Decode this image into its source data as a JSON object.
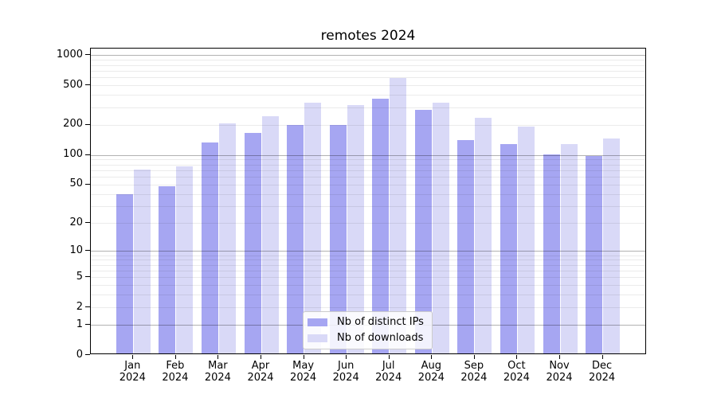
{
  "title": "remotes 2024",
  "chart_data": {
    "type": "bar",
    "title": "remotes 2024",
    "scale": "log1p",
    "categories": [
      "Jan",
      "Feb",
      "Mar",
      "Apr",
      "May",
      "Jun",
      "Jul",
      "Aug",
      "Sep",
      "Oct",
      "Nov",
      "Dec"
    ],
    "year": "2024",
    "series": [
      {
        "name": "Nb of distinct IPs",
        "color": "#a6a6f2",
        "values": [
          38,
          46,
          128,
          159,
          191,
          192,
          357,
          272,
          135,
          124,
          98,
          94
        ]
      },
      {
        "name": "Nb of downloads",
        "color": "#d9d9f7",
        "values": [
          68,
          74,
          199,
          235,
          322,
          306,
          566,
          322,
          228,
          185,
          124,
          141
        ]
      }
    ],
    "xlabel": "",
    "ylabel": "",
    "ylim": [
      0,
      1168
    ],
    "ytick_values": [
      0,
      1,
      2,
      5,
      10,
      20,
      50,
      100,
      200,
      500,
      1000
    ],
    "ytick_labels": [
      "0",
      "1",
      "2",
      "5",
      "10",
      "20",
      "50",
      "100",
      "200",
      "500",
      "1000"
    ],
    "major_grid_values": [
      1,
      10,
      100,
      1000
    ],
    "minor_grid_values": [
      2,
      3,
      4,
      5,
      6,
      7,
      8,
      9,
      20,
      30,
      40,
      50,
      60,
      70,
      80,
      90,
      200,
      300,
      400,
      500,
      600,
      700,
      800,
      900
    ],
    "grid": true,
    "legend_position": "lower center"
  },
  "colors": {
    "background": "#ffffff",
    "spine": "#000000",
    "text": "#000000",
    "major_grid": "rgba(0,0,0,0.30)",
    "minor_grid": "rgba(0,0,0,0.08)"
  }
}
